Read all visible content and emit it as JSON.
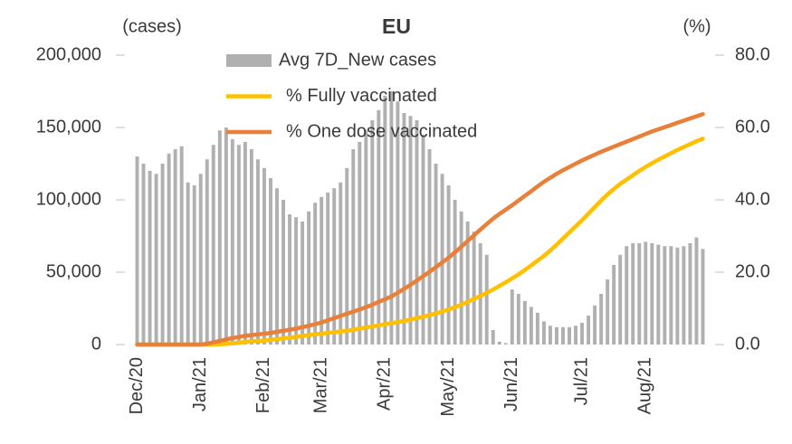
{
  "chart_data": {
    "type": "combo",
    "title": "EU",
    "y_label": "(cases)",
    "y2_label": "(%)",
    "categories": [
      "Dec/20",
      null,
      null,
      null,
      null,
      null,
      null,
      null,
      null,
      null,
      "Jan/21",
      null,
      null,
      null,
      null,
      null,
      null,
      null,
      null,
      null,
      "Feb/21",
      null,
      null,
      null,
      null,
      null,
      null,
      null,
      null,
      "Mar/21",
      null,
      null,
      null,
      null,
      null,
      null,
      null,
      null,
      null,
      "Apr/21",
      null,
      null,
      null,
      null,
      null,
      null,
      null,
      null,
      null,
      "May/21",
      null,
      null,
      null,
      null,
      null,
      null,
      null,
      null,
      null,
      "Jun/21",
      null,
      null,
      null,
      null,
      null,
      null,
      null,
      null,
      null,
      null,
      "Jul/21",
      null,
      null,
      null,
      null,
      null,
      null,
      null,
      null,
      null,
      "Aug/21",
      null,
      null,
      null,
      null,
      null,
      null,
      null,
      null,
      null
    ],
    "series": [
      {
        "name": "Avg 7D_New cases",
        "type": "bar",
        "color": "#b0b0b0",
        "values": [
          130000,
          125000,
          120000,
          118000,
          125000,
          132000,
          135000,
          137000,
          112000,
          110000,
          118000,
          128000,
          138000,
          148000,
          150000,
          142000,
          138000,
          140000,
          135000,
          128000,
          122000,
          115000,
          108000,
          100000,
          90000,
          88000,
          85000,
          92000,
          98000,
          102000,
          105000,
          108000,
          112000,
          122000,
          135000,
          140000,
          148000,
          155000,
          162000,
          172000,
          175000,
          168000,
          160000,
          158000,
          155000,
          145000,
          135000,
          125000,
          118000,
          110000,
          100000,
          92000,
          85000,
          78000,
          70000,
          62000,
          10000,
          2000,
          1000,
          38000,
          35000,
          30000,
          26000,
          22000,
          16000,
          13000,
          12000,
          12000,
          12000,
          13000,
          15000,
          20000,
          27000,
          35000,
          45000,
          55000,
          62000,
          68000,
          70000,
          70000,
          71000,
          70000,
          69000,
          68000,
          68000,
          67000,
          68000,
          70000,
          74000,
          66000
        ]
      },
      {
        "name": "% Fully vaccinated",
        "type": "line",
        "axis": "y2",
        "color": "#ffc000",
        "values": [
          0,
          0,
          0,
          0,
          0,
          0,
          0,
          0,
          0,
          0,
          0,
          0,
          0,
          0.1,
          0.2,
          0.3,
          0.5,
          0.7,
          0.9,
          1.0,
          1.1,
          1.3,
          1.5,
          1.7,
          1.9,
          2.1,
          2.4,
          2.6,
          2.8,
          3.0,
          3.2,
          3.4,
          3.6,
          3.8,
          4.1,
          4.4,
          4.7,
          5.0,
          5.3,
          5.6,
          5.9,
          6.2,
          6.5,
          6.9,
          7.3,
          7.7,
          8.1,
          8.6,
          9.1,
          9.7,
          10.3,
          11,
          11.8,
          12.6,
          13.4,
          14.3,
          15.2,
          16.2,
          17.2,
          18.3,
          19.4,
          20.6,
          21.9,
          23.2,
          24.5,
          26,
          27.6,
          29.3,
          31,
          32.7,
          34.4,
          36.2,
          38,
          39.8,
          41.5,
          43,
          44.4,
          45.6,
          46.8,
          48,
          49.1,
          50.1,
          51.1,
          52,
          52.9,
          53.8,
          54.6,
          55.4,
          56.2,
          56.9
        ]
      },
      {
        "name": "% One dose vaccinated",
        "type": "line",
        "axis": "y2",
        "color": "#e8803a",
        "values": [
          0,
          0,
          0,
          0,
          0,
          0,
          0,
          0,
          0,
          0,
          0,
          0.2,
          0.6,
          1.0,
          1.4,
          1.8,
          2.1,
          2.4,
          2.6,
          2.8,
          3.0,
          3.2,
          3.5,
          3.8,
          4.1,
          4.4,
          4.8,
          5.2,
          5.6,
          6.1,
          6.7,
          7.3,
          7.9,
          8.5,
          9.1,
          9.7,
          10.3,
          11,
          11.8,
          12.5,
          13.3,
          14.3,
          15.4,
          16.5,
          17.7,
          18.9,
          20.1,
          21.4,
          22.7,
          24,
          25.5,
          27,
          28.6,
          30.2,
          31.8,
          33.3,
          34.8,
          36.1,
          37.3,
          38.5,
          39.8,
          41.1,
          42.4,
          43.7,
          45,
          46.1,
          47.2,
          48.2,
          49.1,
          50,
          50.9,
          51.7,
          52.5,
          53.3,
          54,
          54.7,
          55.4,
          56.1,
          56.8,
          57.5,
          58.2,
          58.9,
          59.5,
          60.1,
          60.7,
          61.3,
          61.9,
          62.5,
          63.1,
          63.7
        ]
      }
    ],
    "ylim": [
      0,
      200000
    ],
    "yticks": [
      0,
      {
        "value": 50000,
        "label": "50,000"
      },
      {
        "value": 100000,
        "label": "100,000"
      },
      {
        "value": 150000,
        "label": "150,000"
      },
      {
        "value": 200000,
        "label": "200,000"
      }
    ],
    "y2lim": [
      0,
      80
    ],
    "y2ticks": [
      {
        "value": 0,
        "label": "0.0"
      },
      {
        "value": 20,
        "label": "20.0"
      },
      {
        "value": 40,
        "label": "40.0"
      },
      {
        "value": 60,
        "label": "60.0"
      },
      {
        "value": 80,
        "label": "80.0"
      }
    ],
    "grid": false
  }
}
